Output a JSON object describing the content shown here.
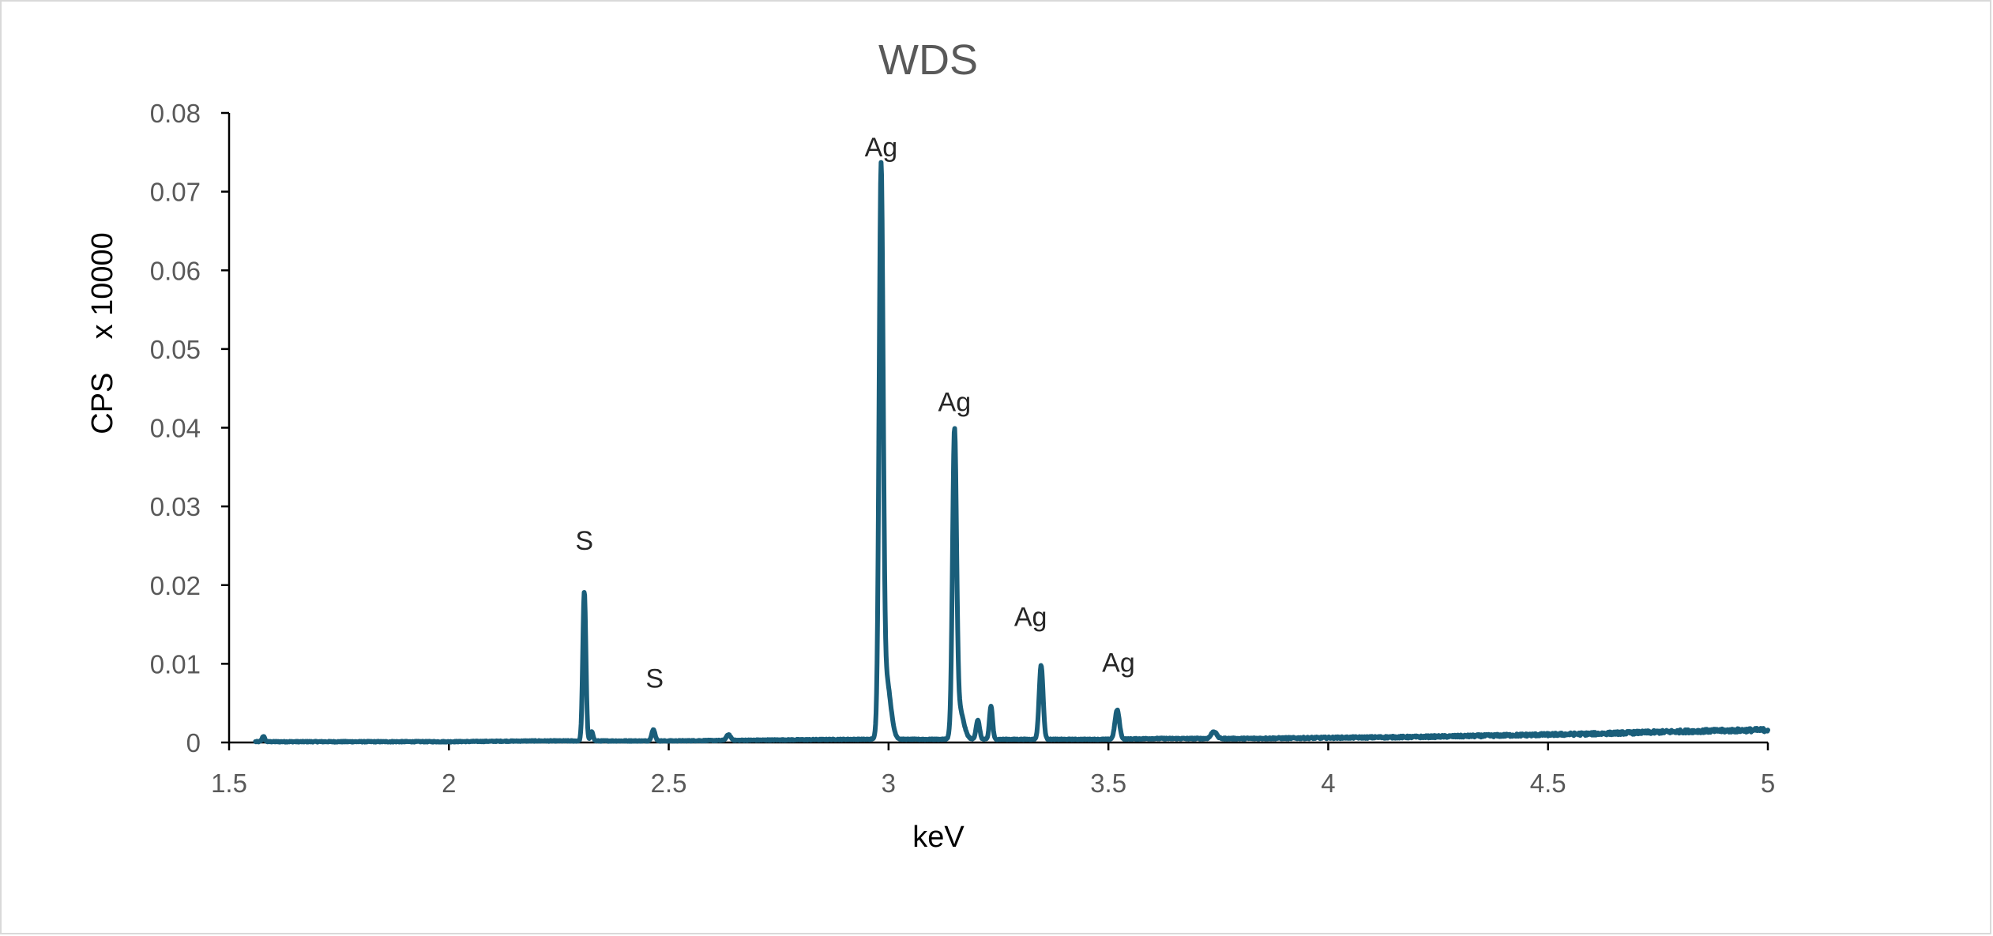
{
  "chart_data": {
    "type": "line",
    "title": "WDS",
    "xlabel": "keV",
    "ylabel": "CPS    x 10000",
    "xlim": [
      1.5,
      5
    ],
    "ylim": [
      0,
      0.08
    ],
    "x_ticks": [
      "1.5",
      "2",
      "2.5",
      "3",
      "3.5",
      "4",
      "4.5",
      "5"
    ],
    "y_ticks": [
      "0",
      "0.01",
      "0.02",
      "0.03",
      "0.04",
      "0.05",
      "0.06",
      "0.07",
      "0.08"
    ],
    "grid": false,
    "legend": "none",
    "series_color": "#1a5e7a",
    "baseline": [
      [
        1.56,
        0.0001
      ],
      [
        1.8,
        0.0001
      ],
      [
        2.0,
        0.0001
      ],
      [
        2.2,
        0.0002
      ],
      [
        2.5,
        0.0002
      ],
      [
        2.7,
        0.0003
      ],
      [
        2.9,
        0.0004
      ],
      [
        3.1,
        0.0004
      ],
      [
        3.3,
        0.0004
      ],
      [
        3.5,
        0.0004
      ],
      [
        3.6,
        0.0005
      ],
      [
        3.8,
        0.0005
      ],
      [
        4.0,
        0.0006
      ],
      [
        4.2,
        0.0007
      ],
      [
        4.4,
        0.0009
      ],
      [
        4.6,
        0.0011
      ],
      [
        4.8,
        0.0014
      ],
      [
        5.0,
        0.0016
      ]
    ],
    "peaks": [
      {
        "x": 1.578,
        "y": 0.0007,
        "w": 0.003
      },
      {
        "x": 2.308,
        "y": 0.019,
        "w": 0.0035
      },
      {
        "x": 2.325,
        "y": 0.0012,
        "w": 0.003
      },
      {
        "x": 2.465,
        "y": 0.0014,
        "w": 0.004
      },
      {
        "x": 2.636,
        "y": 0.0007,
        "w": 0.005
      },
      {
        "x": 2.983,
        "y": 0.069,
        "w": 0.0045
      },
      {
        "x": 2.994,
        "y": 0.008,
        "w": 0.01
      },
      {
        "x": 3.15,
        "y": 0.0372,
        "w": 0.0045
      },
      {
        "x": 3.16,
        "y": 0.004,
        "w": 0.01
      },
      {
        "x": 3.203,
        "y": 0.0024,
        "w": 0.004
      },
      {
        "x": 3.233,
        "y": 0.0042,
        "w": 0.0035
      },
      {
        "x": 3.347,
        "y": 0.0094,
        "w": 0.0045
      },
      {
        "x": 3.52,
        "y": 0.0037,
        "w": 0.005
      },
      {
        "x": 3.74,
        "y": 0.0009,
        "w": 0.006
      }
    ],
    "annotations": [
      {
        "text": "S",
        "x": 2.308,
        "y": 0.0245
      },
      {
        "text": "S",
        "x": 2.468,
        "y": 0.007
      },
      {
        "text": "Ag",
        "x": 2.983,
        "y": 0.0745
      },
      {
        "text": "Ag",
        "x": 3.15,
        "y": 0.0421
      },
      {
        "text": "Ag",
        "x": 3.323,
        "y": 0.0148
      },
      {
        "text": "Ag",
        "x": 3.523,
        "y": 0.009
      }
    ]
  }
}
